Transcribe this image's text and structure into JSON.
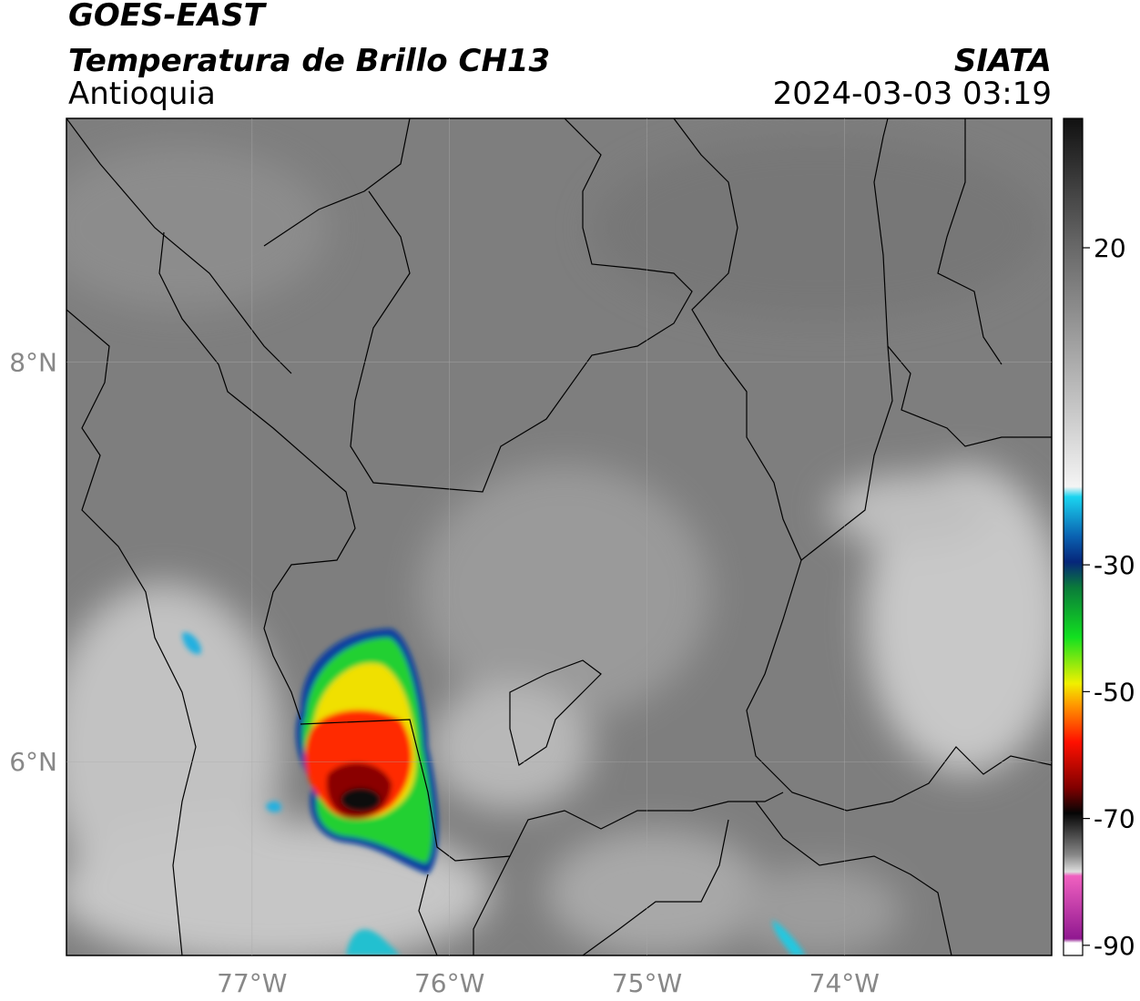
{
  "header": {
    "title": "GOES-EAST",
    "subtitle": "Temperatura de Brillo CH13",
    "region": "Antioquia",
    "source": "SIATA",
    "datetime": "2024-03-03 03:19"
  },
  "map": {
    "xlim": [
      -77.94,
      -72.95
    ],
    "ylim": [
      5.03,
      9.22
    ],
    "xticks": [
      {
        "value": -77,
        "label": "77°W"
      },
      {
        "value": -76,
        "label": "76°W"
      },
      {
        "value": -75,
        "label": "75°W"
      },
      {
        "value": -74,
        "label": "74°W"
      }
    ],
    "yticks": [
      {
        "value": 8,
        "label": "8°N"
      },
      {
        "value": 6,
        "label": "6°N"
      }
    ]
  },
  "colorbar": {
    "lim": [
      -91.6,
      40.4
    ],
    "ticks": [
      20,
      -30,
      -50,
      -70,
      -90
    ]
  }
}
